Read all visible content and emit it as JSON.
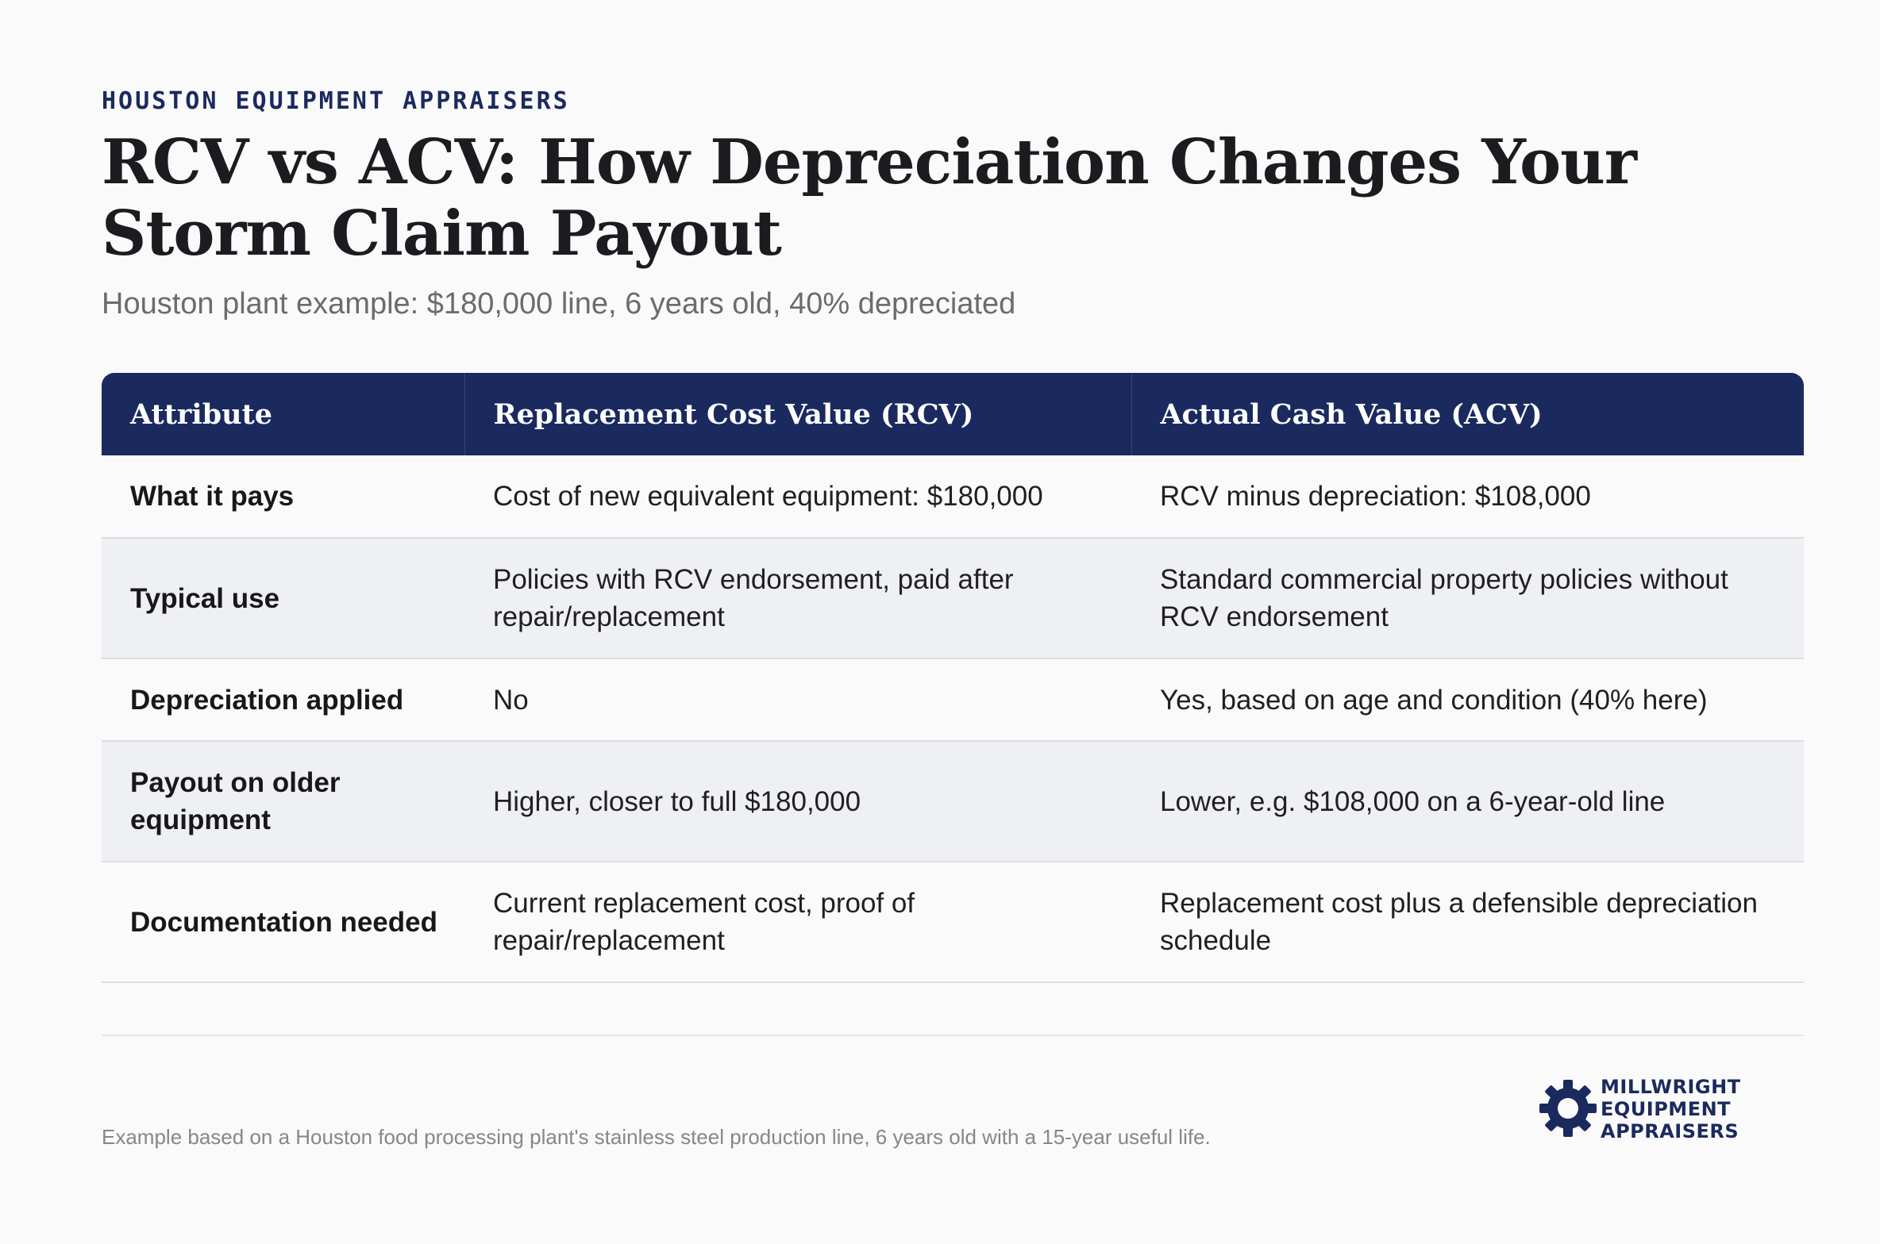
{
  "header": {
    "eyebrow": "HOUSTON EQUIPMENT APPRAISERS",
    "title": "RCV vs ACV: How Depreciation Changes Your Storm Claim Payout",
    "subtitle": "Houston plant example: $180,000 line, 6 years old, 40% depreciated"
  },
  "table": {
    "columns": [
      "Attribute",
      "Replacement Cost Value (RCV)",
      "Actual Cash Value (ACV)"
    ],
    "rows": [
      [
        "What it pays",
        "Cost of new equivalent equipment: $180,000",
        "RCV minus depreciation: $108,000"
      ],
      [
        "Typical use",
        "Policies with RCV endorsement, paid after repair/replacement",
        "Standard commercial property policies without RCV endorsement"
      ],
      [
        "Depreciation applied",
        "No",
        "Yes, based on age and condition (40% here)"
      ],
      [
        "Payout on older equipment",
        "Higher, closer to full $180,000",
        "Lower, e.g. $108,000 on a 6-year-old line"
      ],
      [
        "Documentation needed",
        "Current replacement cost, proof of repair/replacement",
        "Replacement cost plus a defensible depreciation schedule"
      ]
    ]
  },
  "footer": {
    "footnote": "Example based on a Houston food processing plant's stainless steel production line, 6 years old with a 15-year useful life.",
    "logo_lines": [
      "MILLWRIGHT",
      "EQUIPMENT",
      "APPRAISERS"
    ],
    "logo_icon": "gear-icon"
  },
  "colors": {
    "navy": "#1b2a5e",
    "stripe": "#eef0f4",
    "background": "#fafafa"
  }
}
